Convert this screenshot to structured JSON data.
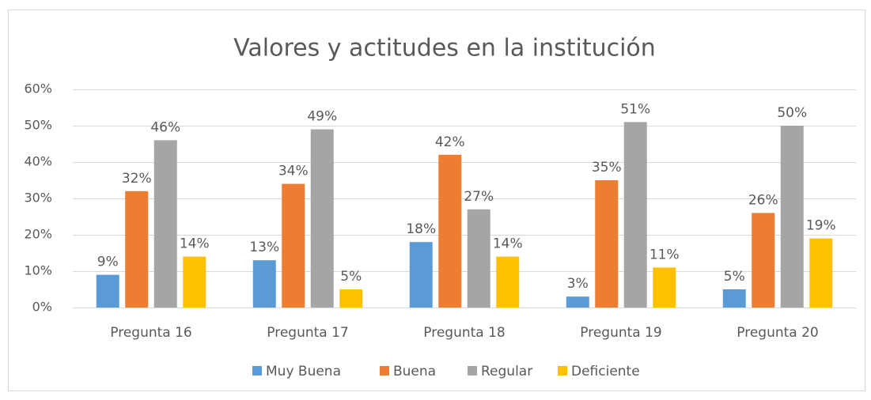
{
  "chart_data": {
    "type": "bar",
    "title": "Valores y actitudes en la institución",
    "categories": [
      "Pregunta 16",
      "Pregunta 17",
      "Pregunta 18",
      "Pregunta 19",
      "Pregunta 20"
    ],
    "series": [
      {
        "name": "Muy Buena",
        "color": "#5b9bd5",
        "values": [
          9,
          13,
          18,
          3,
          5
        ],
        "value_labels": [
          "9%",
          "13%",
          "18%",
          "3%",
          "5%"
        ]
      },
      {
        "name": "Buena",
        "color": "#ed7d31",
        "values": [
          32,
          34,
          42,
          35,
          26
        ],
        "value_labels": [
          "32%",
          "34%",
          "42%",
          "35%",
          "26%"
        ]
      },
      {
        "name": "Regular",
        "color": "#a5a5a5",
        "values": [
          46,
          49,
          27,
          51,
          50
        ],
        "value_labels": [
          "46%",
          "49%",
          "27%",
          "51%",
          "50%"
        ]
      },
      {
        "name": "Deficiente",
        "color": "#ffc000",
        "values": [
          14,
          5,
          14,
          11,
          19
        ],
        "value_labels": [
          "14%",
          "5%",
          "14%",
          "11%",
          "19%"
        ]
      }
    ],
    "ylim": [
      0,
      60
    ],
    "yticks": [
      {
        "value": 0,
        "label": "0%"
      },
      {
        "value": 10,
        "label": "10%"
      },
      {
        "value": 20,
        "label": "20%"
      },
      {
        "value": 30,
        "label": "30%"
      },
      {
        "value": 40,
        "label": "40%"
      },
      {
        "value": 50,
        "label": "50%"
      },
      {
        "value": 60,
        "label": "60%"
      }
    ],
    "grid": true,
    "legend": "bottom"
  }
}
